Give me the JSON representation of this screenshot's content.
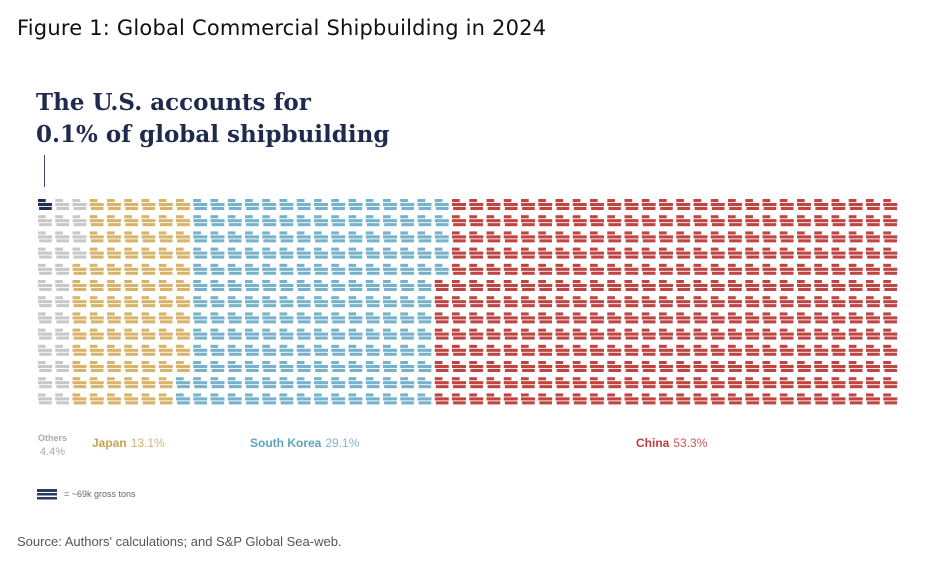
{
  "figure_title": "Figure 1: Global Commercial Shipbuilding in 2024",
  "headline_line1": "The U.S. accounts for",
  "headline_line2": "0.1% of global shipbuilding",
  "scale_note": "= ~69k gross tons",
  "source": "Source: Authors' calculations; and S&P Global Sea-web.",
  "colors": {
    "us": "#1f2f55",
    "others": "#c8c8c8",
    "japan": "#d8b46a",
    "south_korea": "#76b3ca",
    "china": "#c04542"
  },
  "chart_data": {
    "type": "waffle",
    "title": "The U.S. accounts for 0.1% of global shipbuilding",
    "unit": "~69k gross tons",
    "grid": {
      "columns": 50,
      "rows": 13
    },
    "series": [
      {
        "name": "U.S.",
        "value": 0.1,
        "label": "",
        "color_key": "us"
      },
      {
        "name": "Others",
        "value": 4.4,
        "label": "4.4%",
        "color_key": "others"
      },
      {
        "name": "Japan",
        "value": 13.1,
        "label": "13.1%",
        "color_key": "japan"
      },
      {
        "name": "South Korea",
        "value": 29.1,
        "label": "29.1%",
        "color_key": "south_korea"
      },
      {
        "name": "China",
        "value": 53.3,
        "label": "53.3%",
        "color_key": "china"
      }
    ],
    "legend": [
      {
        "name": "Others",
        "value": "4.4%"
      },
      {
        "name": "Japan",
        "value": "13.1%"
      },
      {
        "name": "South Korea",
        "value": "29.1%"
      },
      {
        "name": "China",
        "value": "53.3%"
      }
    ]
  }
}
